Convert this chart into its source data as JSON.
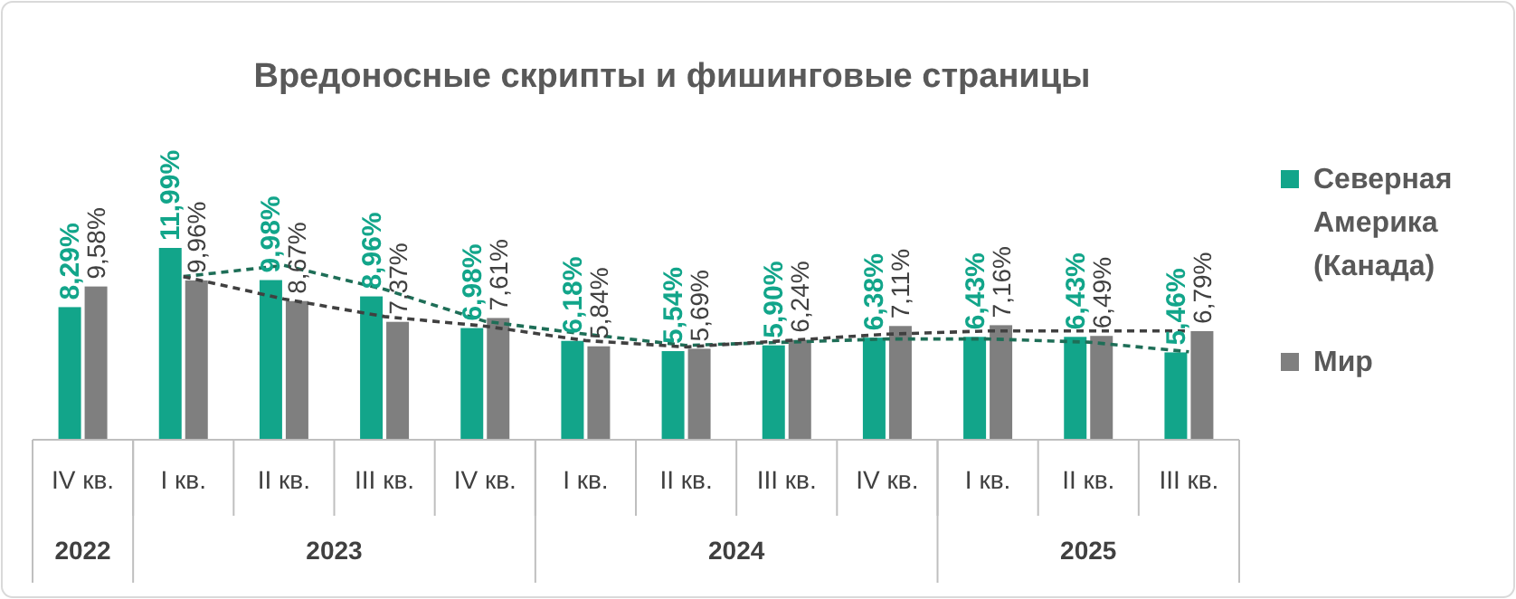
{
  "chart_data": {
    "type": "bar",
    "title": "Вредоносные скрипты и фишинговые страницы",
    "categories": [
      "IV кв.",
      "I кв.",
      "II кв.",
      "III кв.",
      "IV кв.",
      "I кв.",
      "II кв.",
      "III кв.",
      "IV кв.",
      "I кв.",
      "II кв.",
      "III кв."
    ],
    "annotations": [
      "2022",
      "2023",
      "2024",
      "2025"
    ],
    "legend": "right",
    "series": [
      {
        "name": "Северная Америка (Канада)",
        "color": "#12a58a",
        "values": [
          8.29,
          11.99,
          9.98,
          8.96,
          6.98,
          6.18,
          5.54,
          5.9,
          6.38,
          6.43,
          6.43,
          5.46
        ],
        "value_labels": [
          "8,29%",
          "11,99%",
          "9,98%",
          "8,96%",
          "6,98%",
          "6,18%",
          "5,54%",
          "5,90%",
          "6,38%",
          "6,43%",
          "6,43%",
          "5,46%"
        ]
      },
      {
        "name": "Мир",
        "color": "#7f7f7f",
        "values": [
          9.58,
          9.96,
          8.67,
          7.37,
          7.61,
          5.84,
          5.69,
          6.24,
          7.11,
          7.16,
          6.49,
          6.79
        ],
        "value_labels": [
          "9,58%",
          "9,96%",
          "8,67%",
          "7,37%",
          "7,61%",
          "5,84%",
          "5,69%",
          "6,24%",
          "7,11%",
          "7,16%",
          "6,49%",
          "6,79%"
        ]
      },
      {
        "type": "line",
        "line_style": "dashed",
        "color": "#1e6e57",
        "values": [
          null,
          10.2,
          10.9,
          9.4,
          7.4,
          6.6,
          5.9,
          6.1,
          6.3,
          6.3,
          6.1,
          5.5
        ]
      },
      {
        "type": "line",
        "line_style": "dashed",
        "color": "#404040",
        "values": [
          null,
          10.2,
          8.8,
          7.7,
          7.1,
          6.2,
          5.8,
          6.2,
          6.6,
          6.8,
          6.8,
          6.8
        ]
      }
    ]
  }
}
